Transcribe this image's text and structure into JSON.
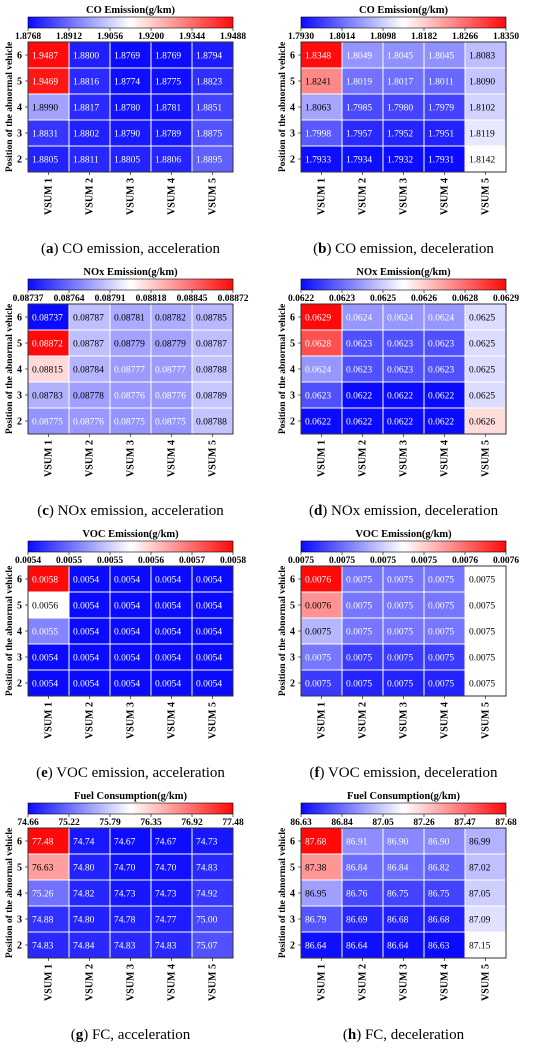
{
  "figure": {
    "y_axis_label": "Position of the abnormal vehicle",
    "x_categories": [
      "VSUM 1",
      "VSUM 2",
      "VSUM 3",
      "VSUM 4",
      "VSUM 5"
    ],
    "y_categories": [
      "6",
      "5",
      "4",
      "3",
      "2"
    ]
  },
  "chart_data": [
    {
      "type": "heatmap",
      "panel": "a",
      "caption_letter": "(a)",
      "caption_text": "CO emission, acceleration",
      "title": "CO Emission(g/km)",
      "colorbar_ticks": [
        "1.8768",
        "1.8912",
        "1.9056",
        "1.9200",
        "1.9344",
        "1.9488"
      ],
      "vmin": 1.8768,
      "vmax": 1.9488,
      "values": [
        [
          "1.9487",
          "1.8800",
          "1.8769",
          "1.8769",
          "1.8794"
        ],
        [
          "1.9469",
          "1.8816",
          "1.8774",
          "1.8775",
          "1.8823"
        ],
        [
          "1.8990",
          "1.8817",
          "1.8780",
          "1.8781",
          "1.8851"
        ],
        [
          "1.8831",
          "1.8802",
          "1.8790",
          "1.8789",
          "1.8875"
        ],
        [
          "1.8805",
          "1.8811",
          "1.8805",
          "1.8806",
          "1.8895"
        ]
      ]
    },
    {
      "type": "heatmap",
      "panel": "b",
      "caption_letter": "(b)",
      "caption_text": "CO emission, deceleration",
      "title": "CO Emission(g/km)",
      "colorbar_ticks": [
        "1.7930",
        "1.8014",
        "1.8098",
        "1.8182",
        "1.8266",
        "1.8350"
      ],
      "vmin": 1.793,
      "vmax": 1.835,
      "values": [
        [
          "1.8348",
          "1.8049",
          "1.8045",
          "1.8045",
          "1.8083"
        ],
        [
          "1.8241",
          "1.8019",
          "1.8017",
          "1.8011",
          "1.8090"
        ],
        [
          "1.8063",
          "1.7985",
          "1.7980",
          "1.7979",
          "1.8102"
        ],
        [
          "1.7998",
          "1.7957",
          "1.7952",
          "1.7951",
          "1.8119"
        ],
        [
          "1.7933",
          "1.7934",
          "1.7932",
          "1.7931",
          "1.8142"
        ]
      ]
    },
    {
      "type": "heatmap",
      "panel": "c",
      "caption_letter": "(c)",
      "caption_text": "NOx emission, acceleration",
      "title": "NOx Emission(g/km)",
      "colorbar_ticks": [
        "0.08737",
        "0.08764",
        "0.08791",
        "0.08818",
        "0.08845",
        "0.08872"
      ],
      "vmin": 0.08737,
      "vmax": 0.08872,
      "values": [
        [
          "0.08737",
          "0.08787",
          "0.08781",
          "0.08782",
          "0.08785"
        ],
        [
          "0.08872",
          "0.08787",
          "0.08779",
          "0.08779",
          "0.08787"
        ],
        [
          "0.08815",
          "0.08784",
          "0.08777",
          "0.08777",
          "0.08788"
        ],
        [
          "0.08783",
          "0.08778",
          "0.08776",
          "0.08776",
          "0.08789"
        ],
        [
          "0.08775",
          "0.08776",
          "0.08775",
          "0.08775",
          "0.08788"
        ]
      ]
    },
    {
      "type": "heatmap",
      "panel": "d",
      "caption_letter": "(d)",
      "caption_text": "NOx emission, deceleration",
      "title": "NOx Emission(g/km)",
      "colorbar_ticks": [
        "0.0622",
        "0.0623",
        "0.0625",
        "0.0626",
        "0.0628",
        "0.0629"
      ],
      "vmin": 0.0622,
      "vmax": 0.0629,
      "values": [
        [
          "0.0629",
          "0.0624",
          "0.0624",
          "0.0624",
          "0.0625"
        ],
        [
          "0.0628",
          "0.0623",
          "0.0623",
          "0.0623",
          "0.0625"
        ],
        [
          "0.0624",
          "0.0623",
          "0.0623",
          "0.0623",
          "0.0625"
        ],
        [
          "0.0623",
          "0.0622",
          "0.0622",
          "0.0622",
          "0.0625"
        ],
        [
          "0.0622",
          "0.0622",
          "0.0622",
          "0.0622",
          "0.0626"
        ]
      ]
    },
    {
      "type": "heatmap",
      "panel": "e",
      "caption_letter": "(e)",
      "caption_text": "VOC emission, acceleration",
      "title": "VOC Emission(g/km)",
      "colorbar_ticks": [
        "0.0054",
        "0.0055",
        "0.0055",
        "0.0056",
        "0.0057",
        "0.0058"
      ],
      "vmin": 0.0054,
      "vmax": 0.0058,
      "values": [
        [
          "0.0058",
          "0.0054",
          "0.0054",
          "0.0054",
          "0.0054"
        ],
        [
          "0.0056",
          "0.0054",
          "0.0054",
          "0.0054",
          "0.0054"
        ],
        [
          "0.0055",
          "0.0054",
          "0.0054",
          "0.0054",
          "0.0054"
        ],
        [
          "0.0054",
          "0.0054",
          "0.0054",
          "0.0054",
          "0.0054"
        ],
        [
          "0.0054",
          "0.0054",
          "0.0054",
          "0.0054",
          "0.0054"
        ]
      ]
    },
    {
      "type": "heatmap",
      "panel": "f",
      "caption_letter": "(f)",
      "caption_text": "VOC emission, deceleration",
      "title": "VOC Emission(g/km)",
      "colorbar_ticks": [
        "0.0075",
        "0.0075",
        "0.0075",
        "0.0075",
        "0.0076",
        "0.0076"
      ],
      "vmin": 0.0075,
      "vmax": 0.0076,
      "values": [
        [
          "0.0076",
          "0.0075",
          "0.0075",
          "0.0075",
          "0.0075"
        ],
        [
          "0.0076",
          "0.0075",
          "0.0075",
          "0.0075",
          "0.0075"
        ],
        [
          "0.0075",
          "0.0075",
          "0.0075",
          "0.0075",
          "0.0075"
        ],
        [
          "0.0075",
          "0.0075",
          "0.0075",
          "0.0075",
          "0.0075"
        ],
        [
          "0.0075",
          "0.0075",
          "0.0075",
          "0.0075",
          "0.0075"
        ]
      ],
      "color_levels": [
        [
          1.0,
          0.22,
          0.22,
          0.22,
          0.5
        ],
        [
          0.72,
          0.22,
          0.22,
          0.22,
          0.5
        ],
        [
          0.35,
          0.22,
          0.22,
          0.22,
          0.5
        ],
        [
          0.22,
          0.1,
          0.1,
          0.1,
          0.5
        ],
        [
          0.1,
          0.05,
          0.05,
          0.05,
          0.5
        ]
      ]
    },
    {
      "type": "heatmap",
      "panel": "g",
      "caption_letter": "(g)",
      "caption_text": "FC, acceleration",
      "title": "Fuel Consumption(g/km)",
      "colorbar_ticks": [
        "74.66",
        "75.22",
        "75.79",
        "76.35",
        "76.92",
        "77.48"
      ],
      "vmin": 74.66,
      "vmax": 77.48,
      "values": [
        [
          "77.48",
          "74.74",
          "74.67",
          "74.67",
          "74.73"
        ],
        [
          "76.63",
          "74.80",
          "74.70",
          "74.70",
          "74.83"
        ],
        [
          "75.26",
          "74.82",
          "74.73",
          "74.73",
          "74.92"
        ],
        [
          "74.88",
          "74.80",
          "74.78",
          "74.77",
          "75.00"
        ],
        [
          "74.83",
          "74.84",
          "74.83",
          "74.83",
          "75.07"
        ]
      ]
    },
    {
      "type": "heatmap",
      "panel": "h",
      "caption_letter": "(h)",
      "caption_text": "FC, deceleration",
      "title": "Fuel Consumption(g/km)",
      "colorbar_ticks": [
        "86.63",
        "86.84",
        "87.05",
        "87.26",
        "87.47",
        "87.68"
      ],
      "vmin": 86.63,
      "vmax": 87.68,
      "values": [
        [
          "87.68",
          "86.91",
          "86.90",
          "86.90",
          "86.99"
        ],
        [
          "87.38",
          "86.84",
          "86.84",
          "86.82",
          "87.02"
        ],
        [
          "86.95",
          "86.76",
          "86.75",
          "86.75",
          "87.05"
        ],
        [
          "86.79",
          "86.69",
          "86.68",
          "86.68",
          "87.09"
        ],
        [
          "86.64",
          "86.64",
          "86.64",
          "86.63",
          "87.15"
        ]
      ]
    }
  ],
  "colors": {
    "low": "#0000ff",
    "mid": "#ffffff",
    "high": "#ff0000"
  }
}
